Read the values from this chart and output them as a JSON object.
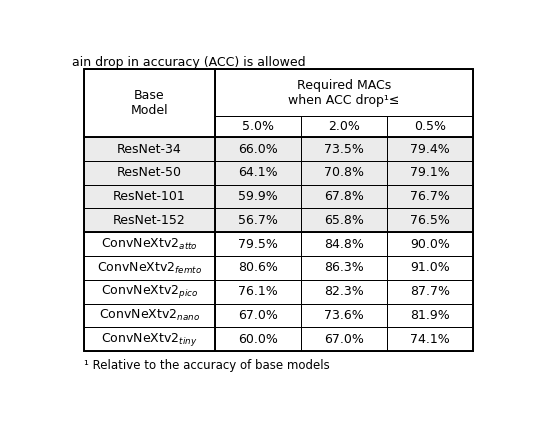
{
  "title_text": "ain drop in accuracy (ACC) is allowed",
  "subheaders": [
    "5.0%",
    "2.0%",
    "0.5%"
  ],
  "resnet_rows": [
    [
      "ResNet-34",
      "66.0%",
      "73.5%",
      "79.4%"
    ],
    [
      "ResNet-50",
      "64.1%",
      "70.8%",
      "79.1%"
    ],
    [
      "ResNet-101",
      "59.9%",
      "67.8%",
      "76.7%"
    ],
    [
      "ResNet-152",
      "56.7%",
      "65.8%",
      "76.5%"
    ]
  ],
  "convnext_labels": [
    "atto",
    "femto",
    "pico",
    "nano",
    "tiny"
  ],
  "convnext_rows": [
    [
      "79.5%",
      "84.8%",
      "90.0%"
    ],
    [
      "80.6%",
      "86.3%",
      "91.0%"
    ],
    [
      "76.1%",
      "82.3%",
      "87.7%"
    ],
    [
      "67.0%",
      "73.6%",
      "81.9%"
    ],
    [
      "60.0%",
      "67.0%",
      "74.1%"
    ]
  ],
  "footnote": "¹ Relative to the accuracy of base models",
  "bg_color": "#ffffff",
  "row_bg_resnet": "#ebebeb",
  "row_bg_convnext": "#ffffff",
  "font_size": 9.0,
  "fig_width": 5.4,
  "fig_height": 4.28,
  "dpi": 100
}
